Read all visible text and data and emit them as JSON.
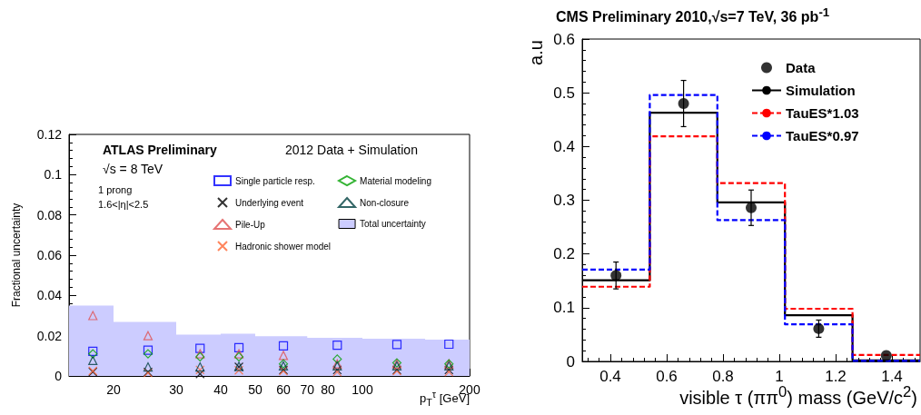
{
  "chart_data": [
    {
      "type": "scatter",
      "xlabel": "p$_{T}$$^{τ}$ [GeV]",
      "ylabel": "Fractional uncertainty",
      "annotations": [
        "ATLAS Preliminary",
        "2012 Data + Simulation",
        "√s = 8 TeV",
        "1 prong",
        "1.6<|η|<2.5"
      ],
      "log": "x",
      "xlim": [
        15,
        200
      ],
      "xticks": [
        20,
        30,
        40,
        50,
        60,
        70,
        80,
        100,
        200
      ],
      "ylim": [
        0,
        0.12
      ],
      "yticks": [
        0,
        0.02,
        0.04,
        0.06,
        0.08,
        0.1,
        0.12
      ],
      "grid": false,
      "legend": "top right",
      "series": [
        {
          "name": "Single particle resp.",
          "marker": "square",
          "color": "#0000ff",
          "x": [
            17.5,
            25,
            35,
            45,
            60,
            85,
            125,
            175
          ],
          "values": [
            0.0122,
            0.0128,
            0.0137,
            0.014,
            0.0149,
            0.0153,
            0.0156,
            0.0158
          ]
        },
        {
          "name": "Underlying event",
          "marker": "cross",
          "color": "#000000",
          "x": [
            17.5,
            25,
            35,
            45,
            60,
            85,
            125,
            175
          ],
          "values": [
            0.002,
            0.002,
            0.001,
            0.0045,
            0.003,
            0.003,
            0.003,
            0.003
          ]
        },
        {
          "name": "Pile-Up",
          "marker": "triangle",
          "color": "#e05050",
          "x": [
            17.5,
            25,
            35,
            45,
            60,
            85,
            125,
            175
          ],
          "values": [
            0.03,
            0.02,
            0.011,
            0.011,
            0.0102,
            0.006,
            0.006,
            0.006
          ]
        },
        {
          "name": "Hadronic shower model",
          "marker": "cross",
          "color": "#ff6633",
          "x": [
            17.5,
            25,
            35,
            45,
            60,
            85,
            125,
            175
          ],
          "values": [
            0.0025,
            0.0015,
            0.003,
            0.0028,
            0.0025,
            0.002,
            0.0025,
            0.002
          ]
        },
        {
          "name": "Material modeling",
          "marker": "diamond",
          "color": "#00a000",
          "x": [
            17.5,
            25,
            35,
            45,
            60,
            85,
            125,
            175
          ],
          "values": [
            0.011,
            0.011,
            0.0095,
            0.0095,
            0.006,
            0.0084,
            0.0065,
            0.006
          ]
        },
        {
          "name": "Non-closure",
          "marker": "triangle",
          "color": "#004040",
          "x": [
            17.5,
            25,
            35,
            45,
            60,
            85,
            125,
            175
          ],
          "values": [
            0.0077,
            0.0045,
            0.0045,
            0.0048,
            0.005,
            0.005,
            0.005,
            0.005
          ]
        },
        {
          "name": "Total uncertainty",
          "type": "histogram",
          "color": "#ccccff",
          "bins": [
            15,
            20,
            30,
            40,
            50,
            70,
            100,
            150,
            200
          ],
          "values": [
            0.035,
            0.0268,
            0.0205,
            0.021,
            0.0197,
            0.019,
            0.0185,
            0.018
          ]
        }
      ]
    },
    {
      "type": "histogram",
      "title": "CMS Preliminary 2010,√s=7 TeV, 36 pb$^{-1}$",
      "xlabel": "visible τ (ππ$^{0}$) mass (GeV/c$^{2}$)",
      "ylabel": "a.u",
      "xlim": [
        0.3,
        1.5
      ],
      "xticks": [
        0.4,
        0.6,
        0.8,
        1,
        1.2,
        1.4
      ],
      "ylim": [
        0,
        0.6
      ],
      "yticks": [
        0,
        0.1,
        0.2,
        0.3,
        0.4,
        0.5,
        0.6
      ],
      "grid": false,
      "legend": "top right",
      "series": [
        {
          "name": "Data",
          "type": "scatter",
          "marker": "circle",
          "color": "#000000",
          "x": [
            0.42,
            0.66,
            0.9,
            1.14,
            1.38
          ],
          "values": [
            0.16,
            0.48,
            0.286,
            0.061,
            0.011
          ],
          "errors": [
            0.025,
            0.043,
            0.033,
            0.016,
            null
          ]
        },
        {
          "name": "Simulation",
          "color": "#000000",
          "line_style": "solid",
          "bins": [
            0.3,
            0.54,
            0.78,
            1.02,
            1.26,
            1.5
          ],
          "values": [
            0.151,
            0.463,
            0.296,
            0.086,
            0.002
          ]
        },
        {
          "name": "TauES*1.03",
          "color": "#ff0000",
          "line_style": "dashed",
          "bins": [
            0.3,
            0.54,
            0.78,
            1.02,
            1.26,
            1.5
          ],
          "values": [
            0.139,
            0.419,
            0.332,
            0.098,
            0.012
          ]
        },
        {
          "name": "TauES*0.97",
          "color": "#0000ff",
          "line_style": "dashed",
          "bins": [
            0.3,
            0.54,
            0.78,
            1.02,
            1.26,
            1.5
          ],
          "values": [
            0.171,
            0.496,
            0.263,
            0.069,
            0.001
          ]
        }
      ]
    }
  ]
}
